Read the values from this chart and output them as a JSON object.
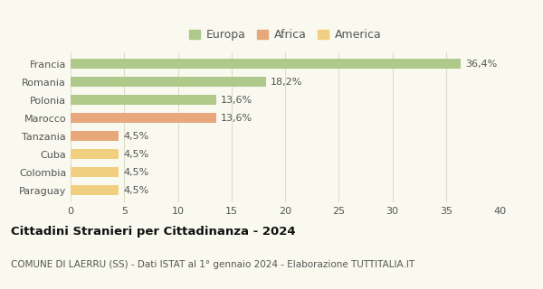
{
  "categories": [
    "Paraguay",
    "Colombia",
    "Cuba",
    "Tanzania",
    "Marocco",
    "Polonia",
    "Romania",
    "Francia"
  ],
  "values": [
    4.5,
    4.5,
    4.5,
    4.5,
    13.6,
    13.6,
    18.2,
    36.4
  ],
  "labels": [
    "4,5%",
    "4,5%",
    "4,5%",
    "4,5%",
    "13,6%",
    "13,6%",
    "18,2%",
    "36,4%"
  ],
  "colors": [
    "#f0d080",
    "#f0d080",
    "#f0d080",
    "#e8a87c",
    "#e8a87c",
    "#aec98a",
    "#aec98a",
    "#aec98a"
  ],
  "legend_items": [
    {
      "label": "Europa",
      "color": "#aec98a"
    },
    {
      "label": "Africa",
      "color": "#e8a87c"
    },
    {
      "label": "America",
      "color": "#f0d080"
    }
  ],
  "title": "Cittadini Stranieri per Cittadinanza - 2024",
  "subtitle": "COMUNE DI LAERRU (SS) - Dati ISTAT al 1° gennaio 2024 - Elaborazione TUTTITALIA.IT",
  "xlim": [
    0,
    40
  ],
  "xticks": [
    0,
    5,
    10,
    15,
    20,
    25,
    30,
    35,
    40
  ],
  "background_color": "#f9f9f0",
  "grid_color": "#ddddcc",
  "bar_height": 0.55,
  "title_fontsize": 9.5,
  "subtitle_fontsize": 7.5,
  "label_fontsize": 8,
  "tick_fontsize": 8,
  "legend_fontsize": 9
}
